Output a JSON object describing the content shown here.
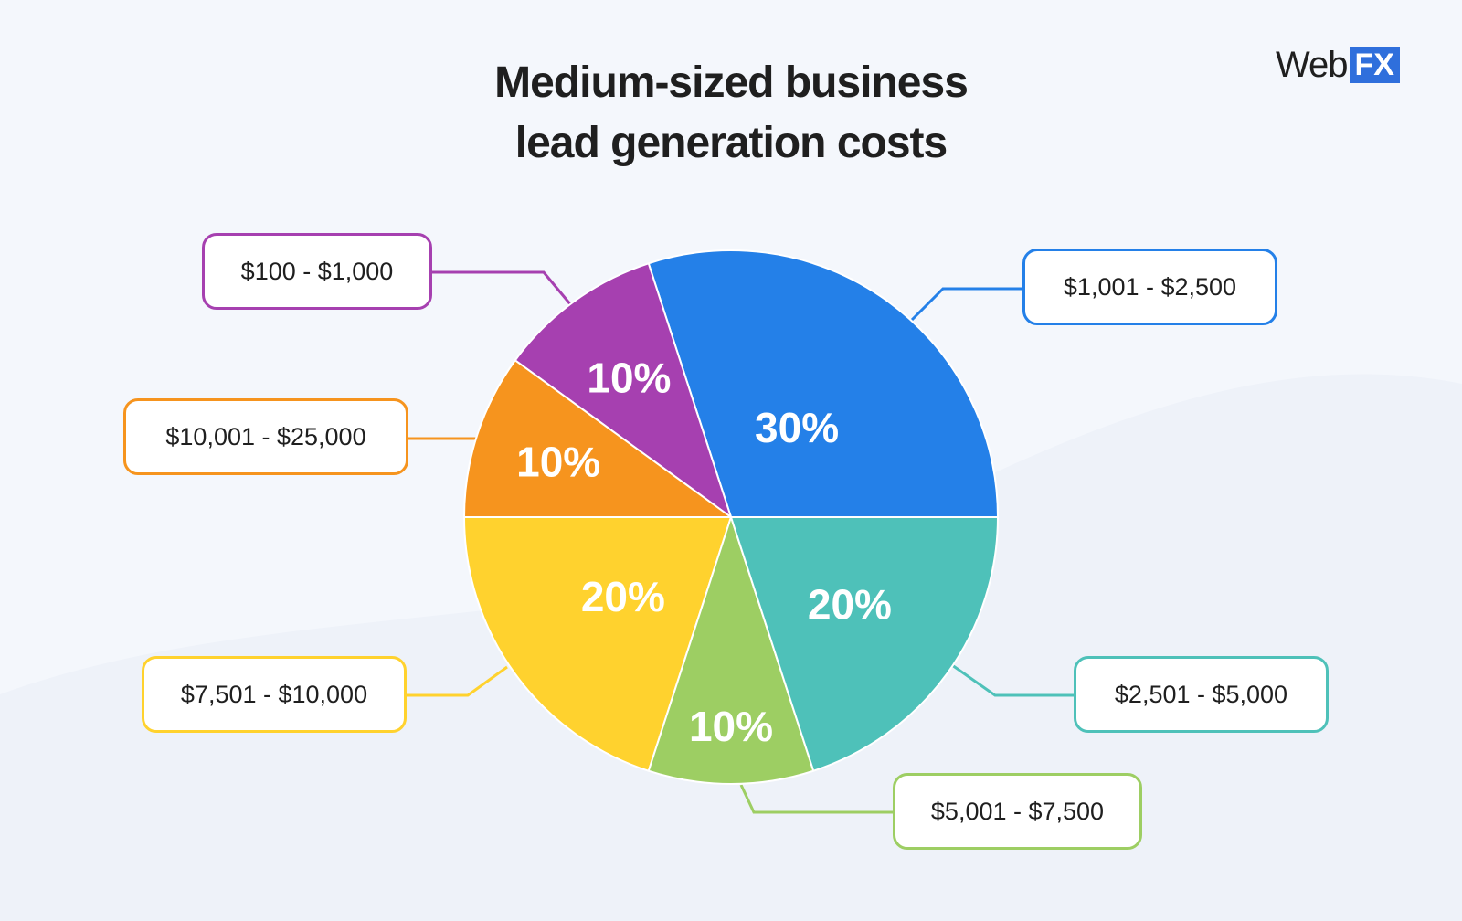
{
  "title_lines": [
    "Medium-sized business",
    "lead generation costs"
  ],
  "logo": {
    "web": "Web",
    "fx": "FX"
  },
  "chart_data": {
    "type": "pie",
    "title": "Medium-sized business lead generation costs",
    "start": "3 o'clock, counter-clockwise",
    "slices": [
      {
        "label": "$1,001 - $2,500",
        "value": 30,
        "display": "30%",
        "color": "#2480e8"
      },
      {
        "label": "$100 - $1,000",
        "value": 10,
        "display": "10%",
        "color": "#a640b0"
      },
      {
        "label": "$10,001 - $25,000",
        "value": 10,
        "display": "10%",
        "color": "#f6941e"
      },
      {
        "label": "$7,501 - $10,000",
        "value": 20,
        "display": "20%",
        "color": "#ffd22e"
      },
      {
        "label": "$5,001 - $7,500",
        "value": 10,
        "display": "10%",
        "color": "#9dce63"
      },
      {
        "label": "$2,501 - $5,000",
        "value": 20,
        "display": "20%",
        "color": "#4ec1b9"
      }
    ]
  }
}
